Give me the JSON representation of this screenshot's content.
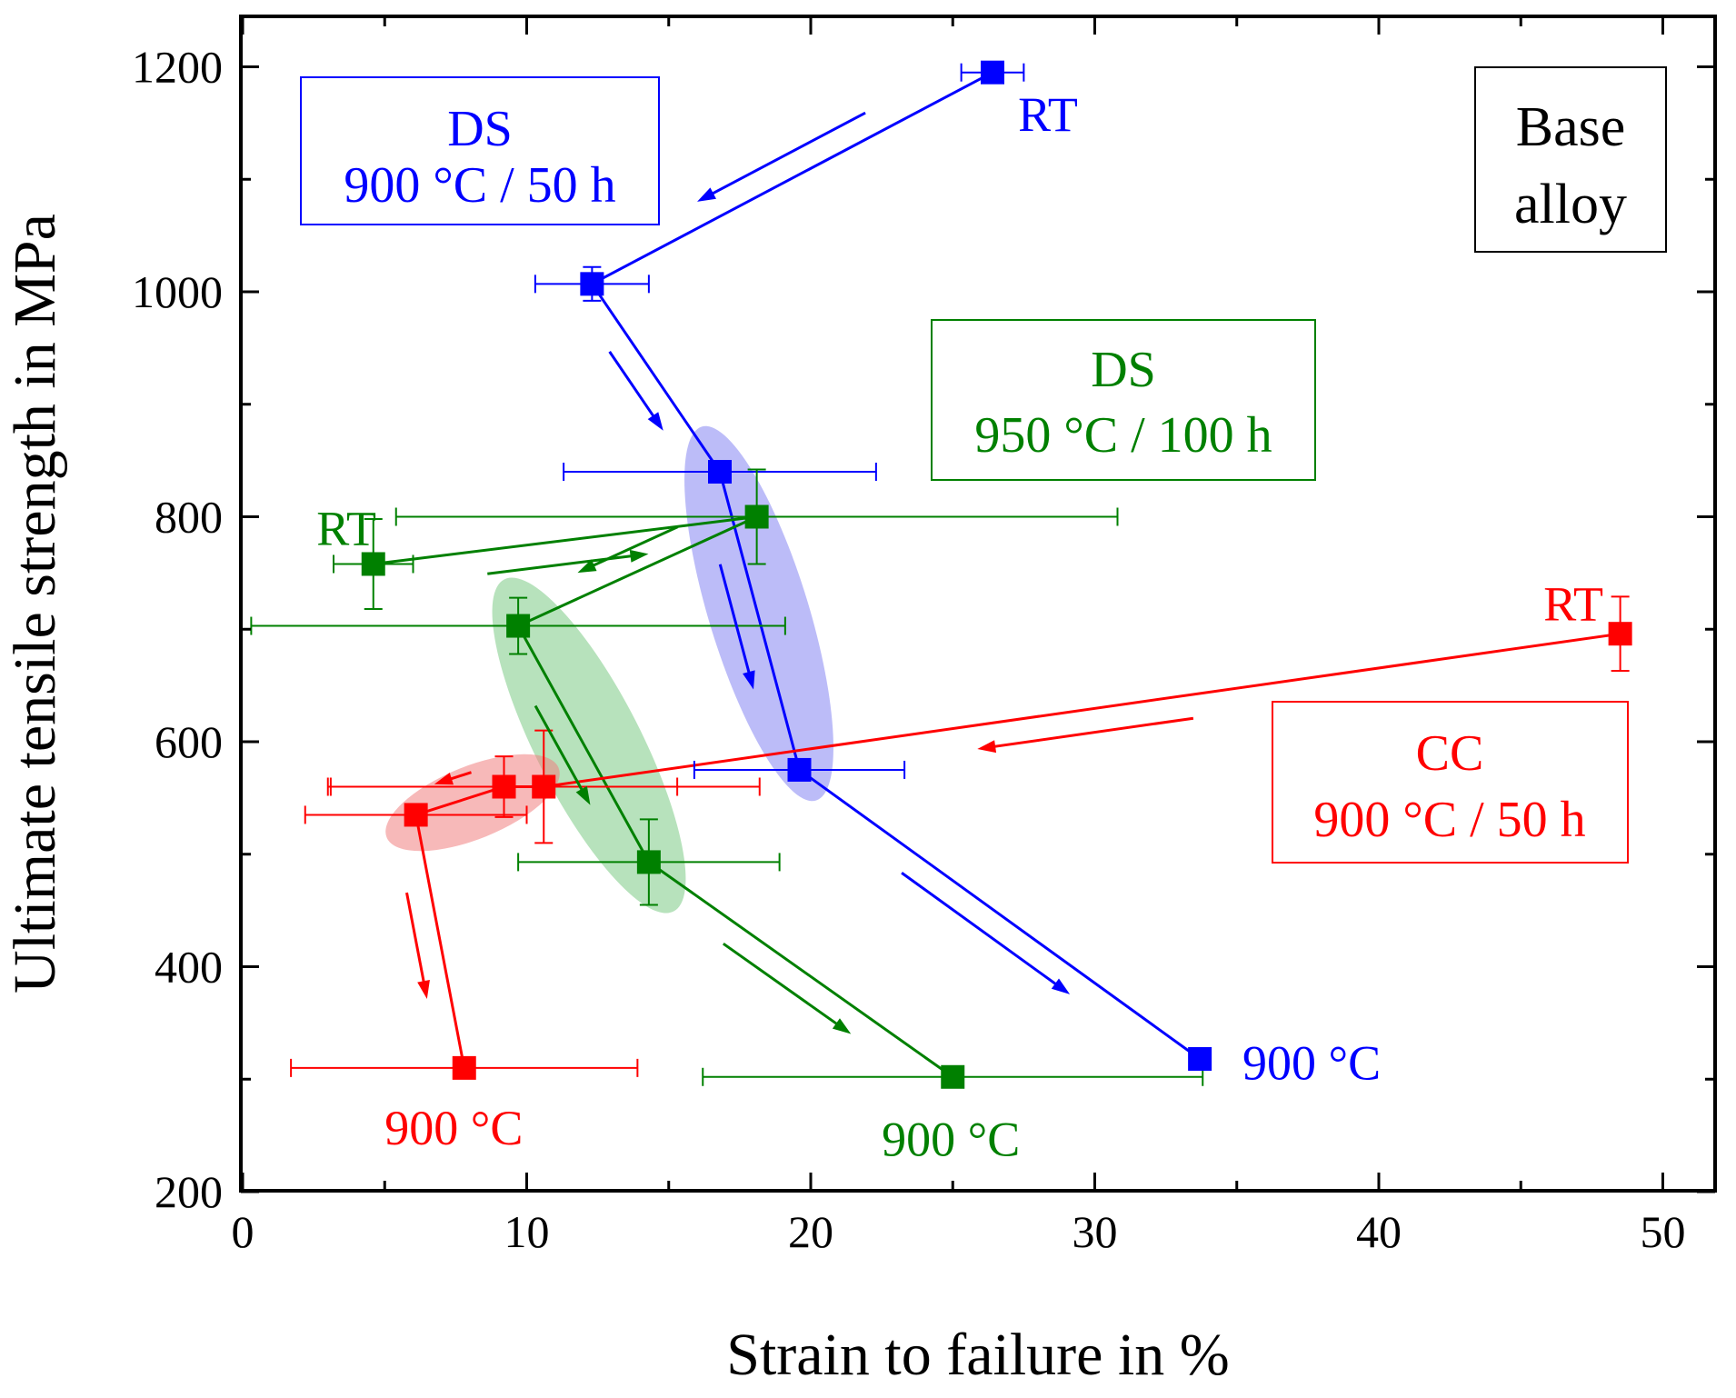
{
  "chart_data": {
    "type": "scatter",
    "title": "",
    "xlabel": "Strain to failure in %",
    "ylabel": "Ultimate tensile strength in MPa",
    "xlim": [
      0,
      51.5
    ],
    "ylim": [
      200,
      1250
    ],
    "xticks": [
      0,
      10,
      20,
      30,
      40,
      50
    ],
    "yticks": [
      200,
      400,
      600,
      800,
      1000,
      1200
    ],
    "grid": false,
    "legend_box": {
      "line1": "Base",
      "line2": "alloy"
    },
    "series": [
      {
        "name": "DS 900 °C / 50 h",
        "color": "#0000ff",
        "box": {
          "line1": "DS",
          "line2": "900 °C / 50 h"
        },
        "points": [
          {
            "x": 26.4,
            "y": 1195,
            "xerr": 1.1,
            "yerr": 0
          },
          {
            "x": 12.3,
            "y": 1007,
            "xerr": 2.0,
            "yerr": 15
          },
          {
            "x": 16.8,
            "y": 840,
            "xerr": 5.5,
            "yerr": 0
          },
          {
            "x": 19.6,
            "y": 575,
            "xerr": 3.7,
            "yerr": 0
          },
          {
            "x": 33.7,
            "y": 318,
            "xerr": 0,
            "yerr": 0
          }
        ],
        "labels": [
          {
            "text": "RT",
            "x": 27.3,
            "y": 1143
          },
          {
            "text": "900 °C",
            "x": 35.2,
            "y": 300
          }
        ]
      },
      {
        "name": "DS 950 °C / 100 h",
        "color": "#008000",
        "box": {
          "line1": "DS",
          "line2": "950 °C / 100 h"
        },
        "points": [
          {
            "x": 4.6,
            "y": 758,
            "xerr": 1.4,
            "yerr": 40
          },
          {
            "x": 18.1,
            "y": 800,
            "xerr": 12.7,
            "yerr": 42
          },
          {
            "x": 9.7,
            "y": 703,
            "xerr": 9.4,
            "yerr": 25
          },
          {
            "x": 14.3,
            "y": 493,
            "xerr": 4.6,
            "yerr": 38
          },
          {
            "x": 25.0,
            "y": 302,
            "xerr": 8.8,
            "yerr": 0
          }
        ],
        "labels": [
          {
            "text": "RT",
            "x": 2.6,
            "y": 775
          },
          {
            "text": "900 °C",
            "x": 22.5,
            "y": 232
          }
        ]
      },
      {
        "name": "CC 900 °C / 50 h",
        "color": "#ff0000",
        "box": {
          "line1": "CC",
          "line2": "900 °C / 50 h"
        },
        "points": [
          {
            "x": 48.5,
            "y": 696,
            "xerr": 0,
            "yerr": 33
          },
          {
            "x": 10.6,
            "y": 560,
            "xerr": 7.6,
            "yerr": 50
          },
          {
            "x": 9.2,
            "y": 560,
            "xerr": 6.1,
            "yerr": 27
          },
          {
            "x": 6.1,
            "y": 535,
            "xerr": 3.9,
            "yerr": 0
          },
          {
            "x": 7.8,
            "y": 310,
            "xerr": 6.1,
            "yerr": 0
          }
        ],
        "labels": [
          {
            "text": "RT",
            "x": 45.8,
            "y": 708
          },
          {
            "text": "900 °C",
            "x": 5.0,
            "y": 242
          }
        ]
      }
    ]
  }
}
